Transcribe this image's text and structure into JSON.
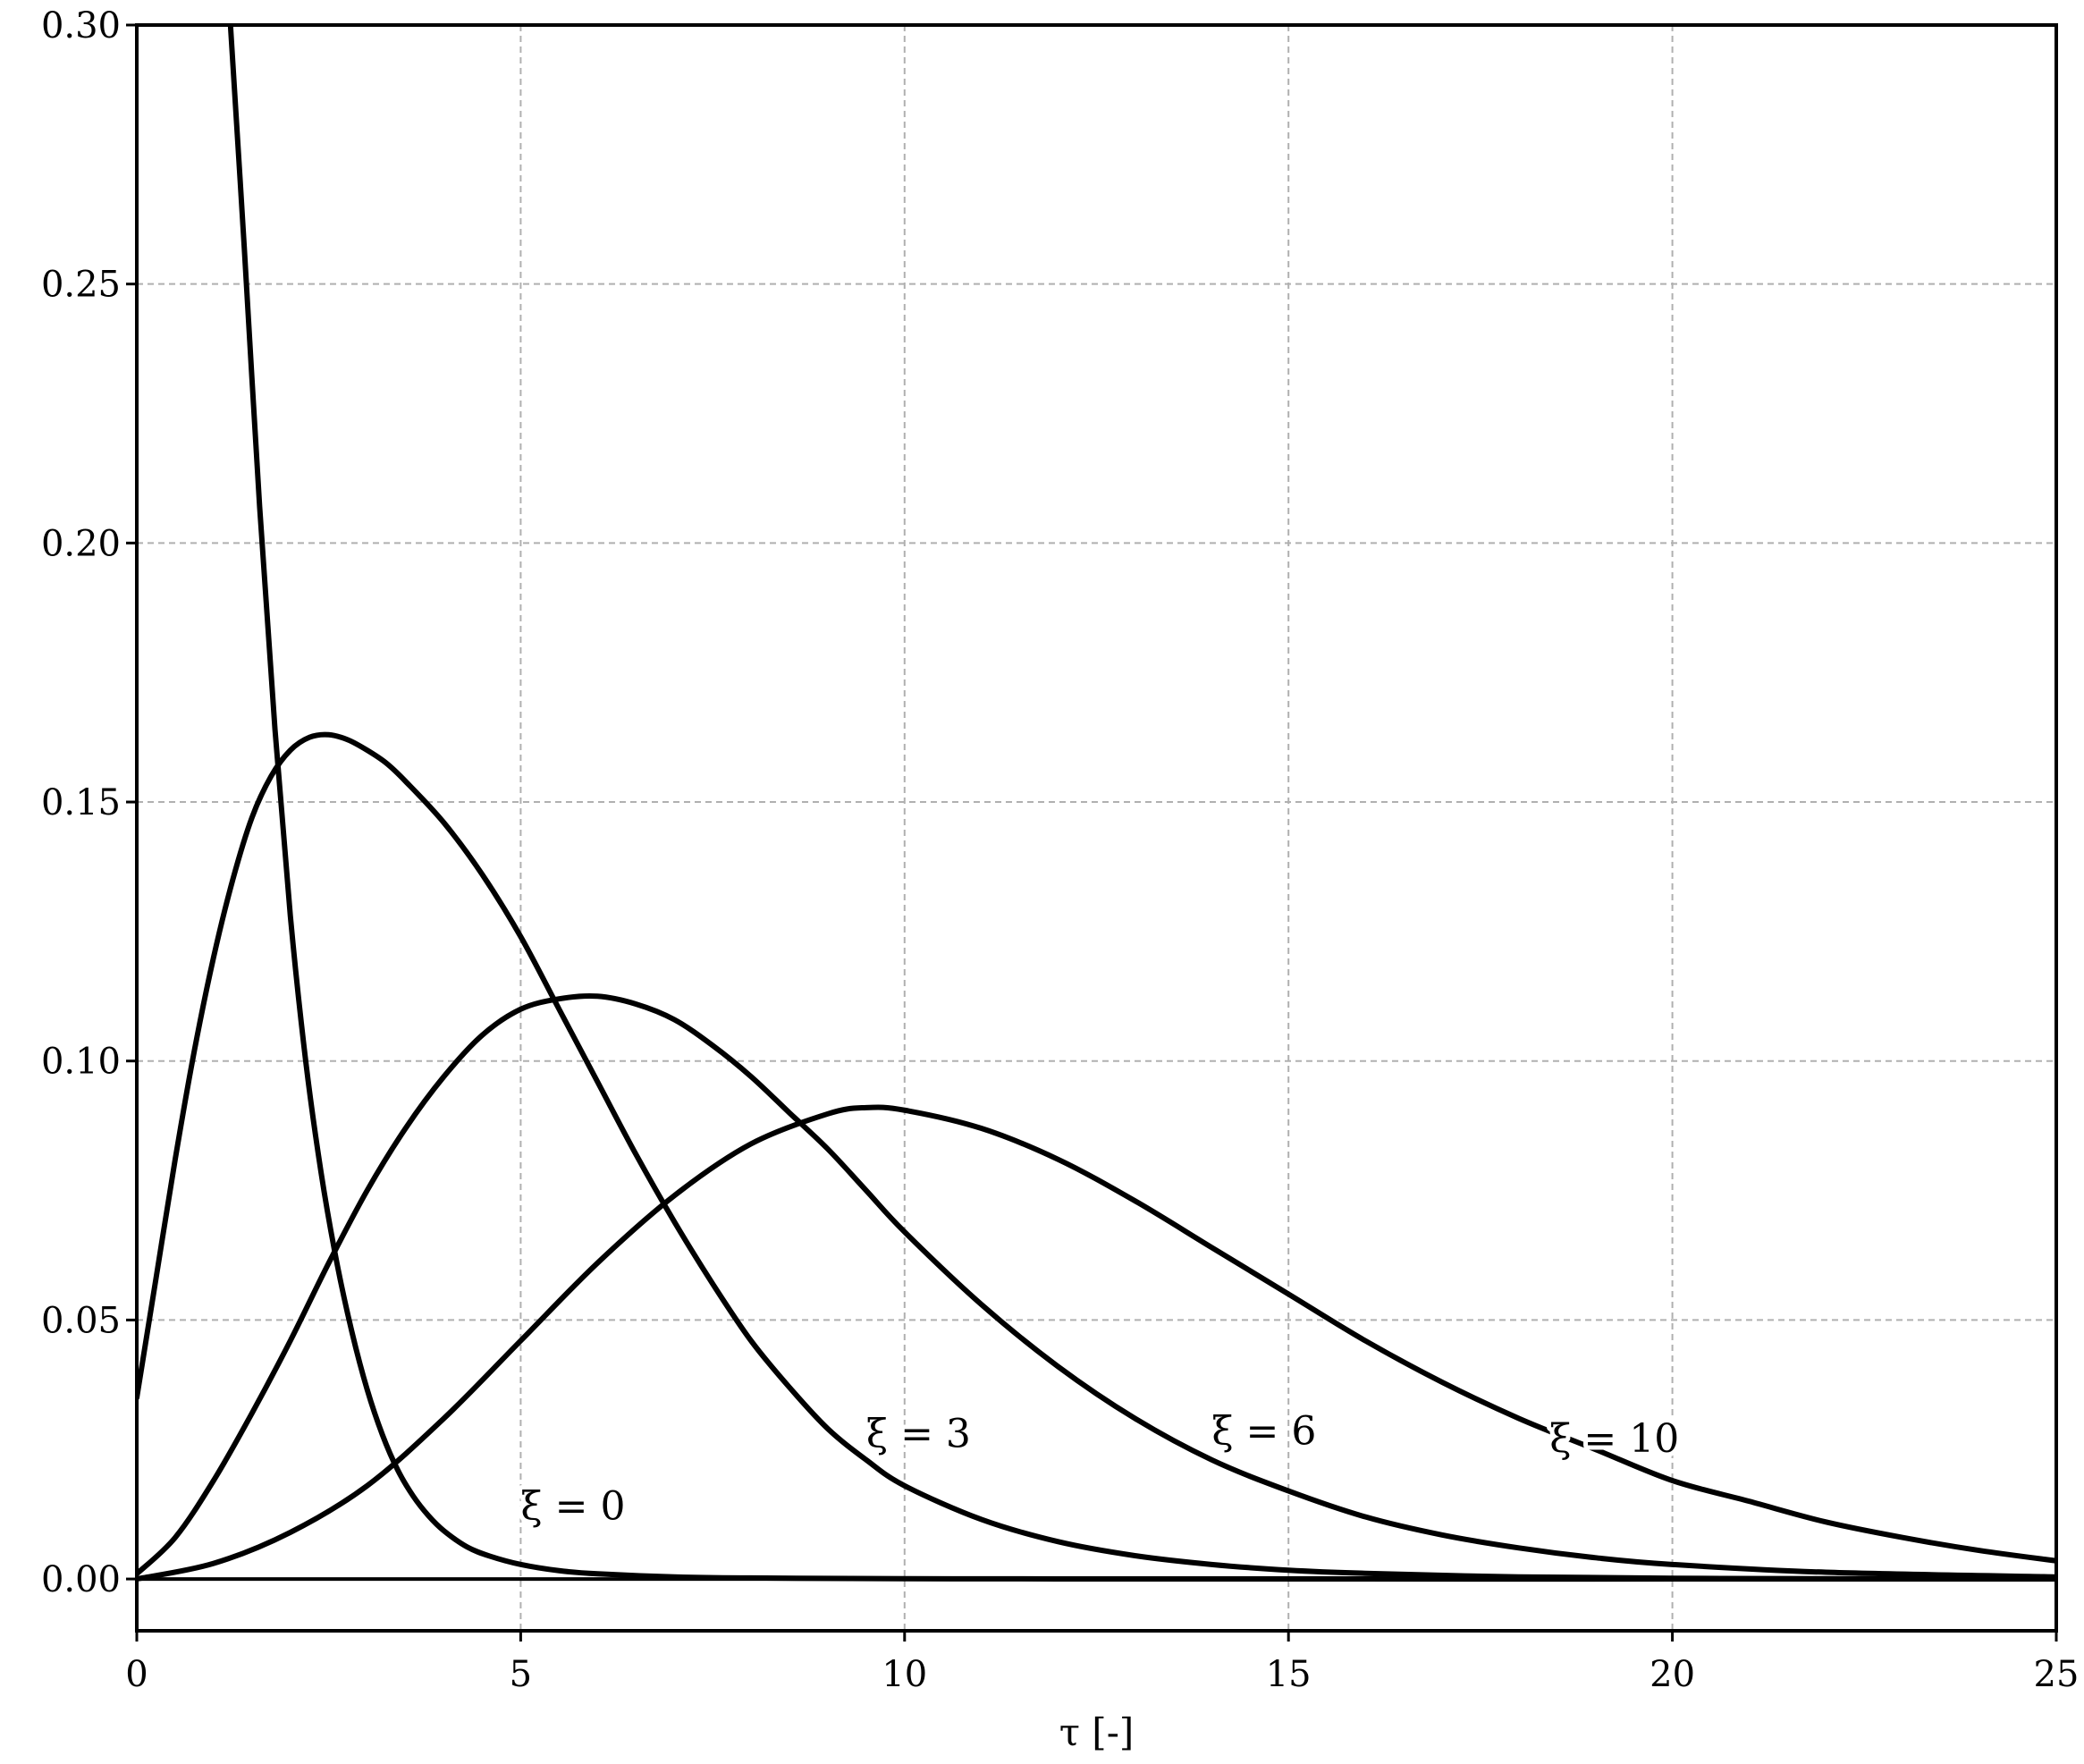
{
  "chart_data": {
    "type": "line",
    "title": "",
    "xlabel": "τ [-]",
    "ylabel": "",
    "xlim": [
      0,
      25
    ],
    "ylim": [
      -0.01,
      0.3
    ],
    "grid": true,
    "legend": "none",
    "x_ticks": [
      0,
      5,
      10,
      15,
      20,
      25
    ],
    "x_tick_labels": [
      "0",
      "5",
      "10",
      "15",
      "20",
      "25"
    ],
    "y_ticks": [
      0.0,
      0.05,
      0.1,
      0.15,
      0.2,
      0.25,
      0.3
    ],
    "y_tick_labels": [
      "0.00",
      "0.05",
      "0.10",
      "0.15",
      "0.20",
      "0.25",
      "0.30"
    ],
    "line_color": "#000000",
    "grid_color": "#b0b0b0",
    "zero_line": 0,
    "series": [
      {
        "label_text": "ξ = 0",
        "label_anchor": {
          "x": 5.0,
          "y": 0.0115
        },
        "x": [
          1.22,
          1.4,
          1.6,
          1.8,
          2.0,
          2.2,
          2.4,
          2.6,
          2.8,
          3.0,
          3.2,
          3.4,
          3.6,
          3.8,
          4.0,
          4.3,
          4.6,
          5.0,
          5.5,
          6.0,
          7.0,
          8.0,
          10.0,
          12.0,
          15.0,
          20.0,
          25.0
        ],
        "values": [
          0.3,
          0.257,
          0.207,
          0.164,
          0.128,
          0.1,
          0.0785,
          0.0615,
          0.0478,
          0.0366,
          0.0278,
          0.021,
          0.016,
          0.0122,
          0.0093,
          0.0062,
          0.0044,
          0.0028,
          0.0016,
          0.001,
          0.0004,
          0.0002,
          5e-05,
          2e-05,
          0.0,
          0.0,
          0.0
        ]
      },
      {
        "label_text": "ξ = 3",
        "label_anchor": {
          "x": 9.5,
          "y": 0.0255
        },
        "x": [
          0.0,
          0.25,
          0.5,
          0.75,
          1.0,
          1.25,
          1.5,
          1.75,
          2.0,
          2.25,
          2.5,
          2.75,
          3.0,
          3.25,
          3.5,
          4.0,
          4.5,
          5.0,
          5.5,
          6.0,
          6.5,
          7.0,
          7.5,
          8.0,
          8.5,
          9.0,
          9.5,
          10.0,
          11.0,
          12.0,
          13.0,
          14.0,
          15.0,
          16.0,
          18.0,
          20.0,
          22.0,
          25.0
        ],
        "values": [
          0.035,
          0.058,
          0.081,
          0.102,
          0.12,
          0.135,
          0.147,
          0.155,
          0.16,
          0.1625,
          0.163,
          0.162,
          0.16,
          0.1575,
          0.154,
          0.146,
          0.136,
          0.124,
          0.11,
          0.096,
          0.082,
          0.069,
          0.057,
          0.046,
          0.037,
          0.029,
          0.023,
          0.018,
          0.0115,
          0.0072,
          0.0045,
          0.0028,
          0.0017,
          0.0011,
          0.0004,
          0.00015,
          5e-05,
          0.0
        ]
      },
      {
        "label_text": "ξ = 6",
        "label_anchor": {
          "x": 14.0,
          "y": 0.026
        },
        "x": [
          0.0,
          0.5,
          1.0,
          1.5,
          2.0,
          2.5,
          3.0,
          3.5,
          4.0,
          4.5,
          5.0,
          5.5,
          6.0,
          6.5,
          7.0,
          7.5,
          8.0,
          8.5,
          9.0,
          9.5,
          10.0,
          11.0,
          12.0,
          13.0,
          14.0,
          15.0,
          16.0,
          17.0,
          18.0,
          19.0,
          20.0,
          22.0,
          25.0
        ],
        "values": [
          0.001,
          0.008,
          0.019,
          0.032,
          0.046,
          0.061,
          0.075,
          0.087,
          0.097,
          0.105,
          0.11,
          0.112,
          0.1125,
          0.111,
          0.108,
          0.103,
          0.097,
          0.09,
          0.083,
          0.075,
          0.067,
          0.053,
          0.041,
          0.031,
          0.023,
          0.017,
          0.012,
          0.0085,
          0.006,
          0.0041,
          0.0028,
          0.0013,
          0.0004
        ]
      },
      {
        "label_text": "ξ = 10",
        "label_anchor": {
          "x": 18.4,
          "y": 0.0245
        },
        "x": [
          0.0,
          1.0,
          2.0,
          3.0,
          4.0,
          5.0,
          6.0,
          7.0,
          8.0,
          9.0,
          9.5,
          10.0,
          11.0,
          12.0,
          13.0,
          14.0,
          15.0,
          16.0,
          17.0,
          18.0,
          19.0,
          20.0,
          21.0,
          22.0,
          23.0,
          24.0,
          25.0
        ],
        "values": [
          0.0,
          0.003,
          0.009,
          0.018,
          0.031,
          0.046,
          0.061,
          0.074,
          0.084,
          0.0898,
          0.091,
          0.0905,
          0.087,
          0.081,
          0.073,
          0.064,
          0.055,
          0.046,
          0.038,
          0.031,
          0.025,
          0.019,
          0.015,
          0.011,
          0.008,
          0.0055,
          0.0035
        ]
      }
    ]
  }
}
